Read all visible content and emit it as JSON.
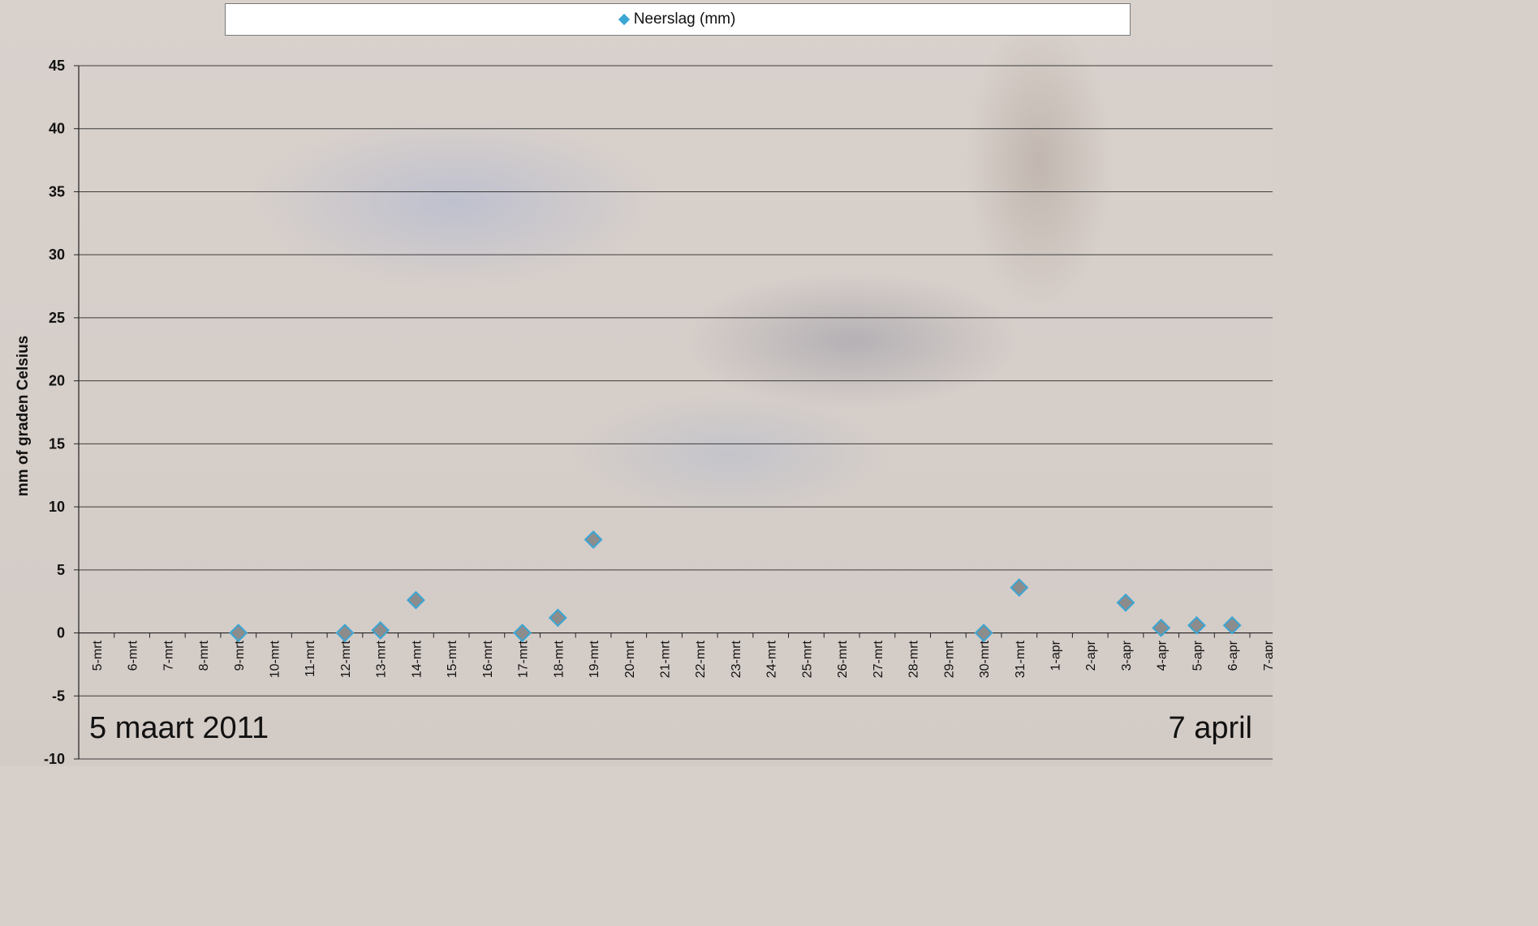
{
  "colors": {
    "marker_fill": "#8c8c8c",
    "marker_stroke": "#3aa6d4",
    "legend_marker": "#3aa6d4",
    "grid": "#3c3c3c"
  },
  "chart_data": {
    "type": "scatter",
    "legend": [
      "Neerslag (mm)"
    ],
    "legend_position": "top",
    "ylabel": "mm of graden Celsius",
    "ylim": [
      -10,
      45
    ],
    "yticks": [
      -10,
      -5,
      0,
      5,
      10,
      15,
      20,
      25,
      30,
      35,
      40,
      45
    ],
    "grid": true,
    "categories": [
      "5-mrt",
      "6-mrt",
      "7-mrt",
      "8-mrt",
      "9-mrt",
      "10-mrt",
      "11-mrt",
      "12-mrt",
      "13-mrt",
      "14-mrt",
      "15-mrt",
      "16-mrt",
      "17-mrt",
      "18-mrt",
      "19-mrt",
      "20-mrt",
      "21-mrt",
      "22-mrt",
      "23-mrt",
      "24-mrt",
      "25-mrt",
      "26-mrt",
      "27-mrt",
      "28-mrt",
      "29-mrt",
      "30-mrt",
      "31-mrt",
      "1-apr",
      "2-apr",
      "3-apr",
      "4-apr",
      "5-apr",
      "6-apr",
      "7-apr"
    ],
    "series": [
      {
        "name": "Neerslag (mm)",
        "points": [
          {
            "x": "9-mrt",
            "y": 0
          },
          {
            "x": "12-mrt",
            "y": 0
          },
          {
            "x": "13-mrt",
            "y": 0.2
          },
          {
            "x": "14-mrt",
            "y": 2.6
          },
          {
            "x": "17-mrt",
            "y": 0
          },
          {
            "x": "18-mrt",
            "y": 1.2
          },
          {
            "x": "19-mrt",
            "y": 7.4
          },
          {
            "x": "30-mrt",
            "y": 0
          },
          {
            "x": "31-mrt",
            "y": 3.6
          },
          {
            "x": "3-apr",
            "y": 2.4
          },
          {
            "x": "4-apr",
            "y": 0.4
          },
          {
            "x": "5-apr",
            "y": 0.6
          },
          {
            "x": "6-apr",
            "y": 0.6
          }
        ]
      }
    ],
    "annotations": [
      "5 maart 2011",
      "7 april"
    ]
  }
}
